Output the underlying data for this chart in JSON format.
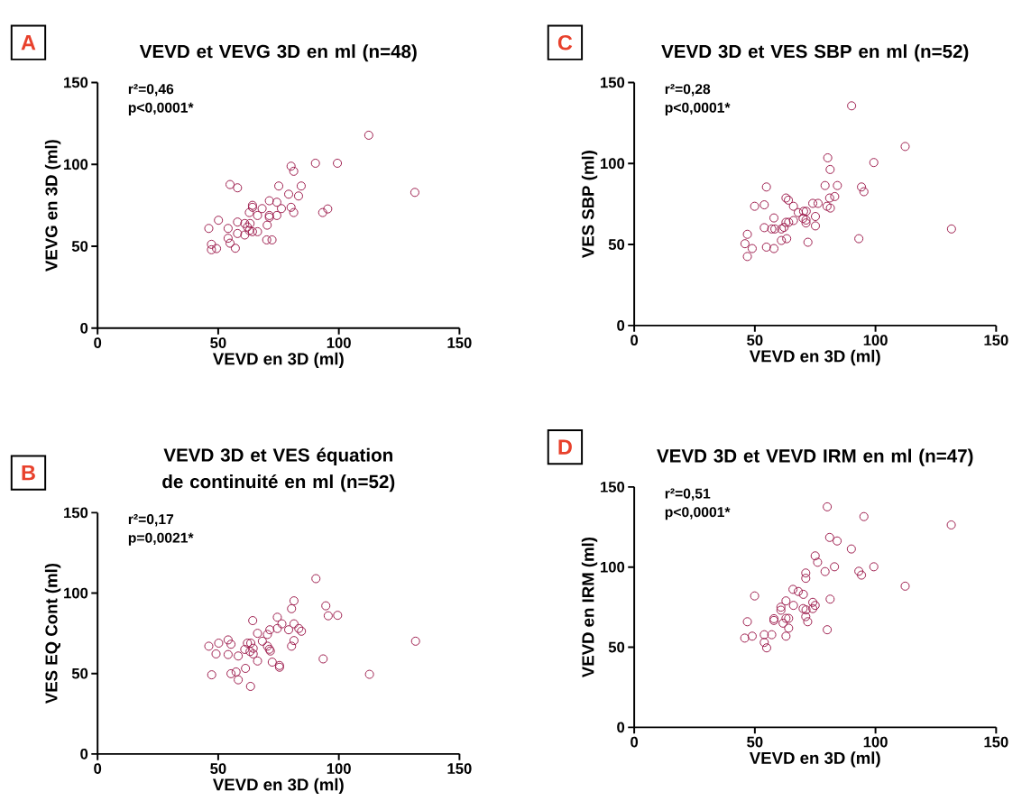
{
  "chart_data": [
    {
      "type": "scatter",
      "title": "VEVD et VEVG 3D en ml (n=48)",
      "xlabel": "VEVD en 3D (ml)",
      "ylabel": "VEVG en 3D (ml)",
      "annotations": [
        "A",
        "r²=0,46",
        "p<0,0001*"
      ],
      "color": "#9e1f4f",
      "marker": "circle",
      "xlim": [
        0,
        150
      ],
      "ylim": [
        0,
        150
      ],
      "xticks": [
        0,
        50,
        100,
        150
      ],
      "yticks": [
        0,
        50,
        100,
        150
      ],
      "x": [
        112.4,
        90.3,
        99.4,
        80.2,
        81.3,
        54.9,
        58.0,
        75.1,
        84.4,
        131.5,
        79.2,
        83.3,
        71.2,
        74.3,
        64.2,
        64.2,
        68.2,
        76.2,
        80.2,
        62.9,
        81.3,
        66.3,
        71.2,
        74.3,
        71.2,
        93.3,
        95.4,
        50.1,
        58.0,
        61.0,
        63.2,
        62.1,
        70.3,
        46.1,
        54.1,
        62.9,
        64.2,
        66.3,
        58.0,
        61.0,
        54.1,
        70.1,
        72.3,
        47.2,
        54.9,
        47.2,
        49.3,
        57.1
      ],
      "values": [
        117.8,
        100.7,
        100.7,
        98.9,
        95.8,
        87.7,
        85.7,
        86.8,
        86.8,
        82.9,
        81.8,
        80.7,
        77.8,
        76.9,
        75.0,
        73.8,
        73.0,
        73.0,
        73.8,
        70.6,
        70.6,
        68.8,
        68.8,
        68.8,
        67.7,
        70.6,
        72.8,
        65.9,
        64.8,
        63.9,
        63.9,
        61.8,
        62.9,
        60.9,
        60.9,
        59.6,
        58.9,
        58.9,
        57.8,
        56.9,
        54.9,
        53.9,
        53.9,
        51.2,
        51.9,
        47.9,
        48.6,
        48.8
      ]
    },
    {
      "type": "scatter",
      "title": "VEVD 3D et VES SBP en ml (n=52)",
      "xlabel": "VEVD en 3D (ml)",
      "ylabel": "VES SBP (ml)",
      "annotations": [
        "C",
        "r²=0,28",
        "p<0,0001*"
      ],
      "color": "#9e1f4f",
      "marker": "circle",
      "xlim": [
        0,
        150
      ],
      "ylim": [
        0,
        150
      ],
      "xticks": [
        0,
        50,
        100,
        150
      ],
      "yticks": [
        0,
        50,
        100,
        150
      ],
      "x": [
        90.1,
        112.3,
        80.2,
        99.3,
        81.2,
        54.8,
        79.1,
        84.2,
        94.2,
        95.2,
        62.9,
        63.9,
        81.0,
        83.1,
        49.9,
        53.9,
        66.0,
        74.0,
        76.2,
        79.9,
        81.3,
        68.0,
        70.2,
        71.3,
        75.1,
        57.9,
        70.0,
        71.2,
        71.2,
        66.0,
        62.9,
        64.0,
        53.9,
        57.0,
        58.3,
        61.0,
        62.1,
        75.1,
        46.9,
        131.5,
        61.0,
        63.2,
        93.1,
        72.0,
        45.9,
        48.9,
        54.8,
        57.9,
        46.9
      ],
      "values": [
        135.6,
        110.5,
        103.5,
        100.6,
        96.3,
        85.5,
        86.4,
        86.4,
        85.5,
        82.6,
        78.7,
        77.4,
        78.7,
        79.6,
        73.6,
        74.5,
        73.6,
        75.4,
        75.4,
        73.6,
        72.5,
        69.7,
        70.5,
        70.5,
        67.3,
        66.4,
        66.2,
        65.1,
        63.3,
        64.8,
        63.7,
        63.7,
        60.4,
        59.6,
        59.6,
        59.6,
        60.6,
        61.5,
        56.3,
        59.6,
        52.5,
        53.6,
        53.6,
        51.4,
        50.5,
        47.5,
        48.4,
        47.5,
        42.6
      ]
    },
    {
      "type": "scatter",
      "title": "VEVD 3D et VES équation de continuité en ml (n=52)",
      "xlabel": "VEVD en 3D (ml)",
      "ylabel": "VES EQ Cont (ml)",
      "annotations": [
        "B",
        "r²=0,17",
        "p=0,0021*"
      ],
      "color": "#9e1f4f",
      "marker": "circle",
      "xlim": [
        0,
        150
      ],
      "ylim": [
        0,
        150
      ],
      "xticks": [
        0,
        50,
        100,
        150
      ],
      "yticks": [
        0,
        50,
        100,
        150
      ],
      "x": [
        90.5,
        81.4,
        80.4,
        94.6,
        95.6,
        99.5,
        64.3,
        74.5,
        76.4,
        81.4,
        74.5,
        71.4,
        79.2,
        83.4,
        84.5,
        66.3,
        70.4,
        54.1,
        50.2,
        55.3,
        46.1,
        68.3,
        62.1,
        63.5,
        81.4,
        80.4,
        70.4,
        64.5,
        71.2,
        71.6,
        61.0,
        63.2,
        64.5,
        49.1,
        54.1,
        58.3,
        131.8,
        66.3,
        72.4,
        93.5,
        75.4,
        75.4,
        61.3,
        57.4,
        55.3,
        47.3,
        112.7,
        58.3,
        63.4
      ],
      "values": [
        109.0,
        95.2,
        90.3,
        92.1,
        85.9,
        86.2,
        82.9,
        85.0,
        80.9,
        80.9,
        78.0,
        77.2,
        77.2,
        78.0,
        76.3,
        75.0,
        74.3,
        70.9,
        68.9,
        68.2,
        67.0,
        70.1,
        68.9,
        68.9,
        70.5,
        67.0,
        67.0,
        65.7,
        65.1,
        64.0,
        65.0,
        63.7,
        62.2,
        62.2,
        61.8,
        60.9,
        70.1,
        57.8,
        57.1,
        59.1,
        55.0,
        53.9,
        53.2,
        51.0,
        49.9,
        49.2,
        49.5,
        46.1,
        42.0
      ]
    },
    {
      "type": "scatter",
      "title": "VEVD 3D et VEVD IRM en ml (n=47)",
      "xlabel": "VEVD en 3D (ml)",
      "ylabel": "VEVD en IRM (ml)",
      "annotations": [
        "D",
        "r²=0,51",
        "p<0,0001*"
      ],
      "color": "#9e1f4f",
      "marker": "circle",
      "xlim": [
        0,
        150
      ],
      "ylim": [
        0,
        150
      ],
      "xticks": [
        0,
        50,
        100,
        150
      ],
      "yticks": [
        0,
        50,
        100,
        150
      ],
      "x": [
        80.0,
        95.2,
        131.4,
        81.0,
        84.1,
        90.0,
        75.0,
        76.0,
        83.0,
        99.3,
        79.1,
        93.1,
        94.2,
        71.1,
        71.1,
        112.3,
        65.8,
        68.0,
        70.1,
        49.9,
        81.2,
        62.9,
        74.0,
        75.0,
        66.0,
        60.8,
        70.0,
        71.2,
        74.0,
        60.8,
        57.9,
        57.9,
        62.9,
        64.0,
        71.1,
        61.7,
        71.9,
        46.9,
        64.0,
        80.0,
        53.9,
        57.0,
        48.9,
        45.8,
        62.9,
        53.9,
        54.9
      ],
      "values": [
        137.6,
        131.5,
        126.3,
        118.5,
        116.3,
        111.3,
        107.0,
        103.0,
        100.2,
        100.2,
        97.2,
        97.4,
        95.0,
        96.3,
        93.0,
        88.1,
        86.1,
        84.8,
        83.0,
        82.0,
        80.0,
        78.9,
        78.0,
        76.1,
        76.1,
        75.0,
        74.1,
        73.3,
        74.1,
        73.1,
        67.8,
        66.7,
        68.0,
        68.0,
        69.1,
        65.0,
        65.9,
        65.9,
        61.9,
        60.9,
        57.8,
        57.8,
        56.9,
        55.7,
        56.9,
        53.0,
        49.6
      ]
    }
  ]
}
